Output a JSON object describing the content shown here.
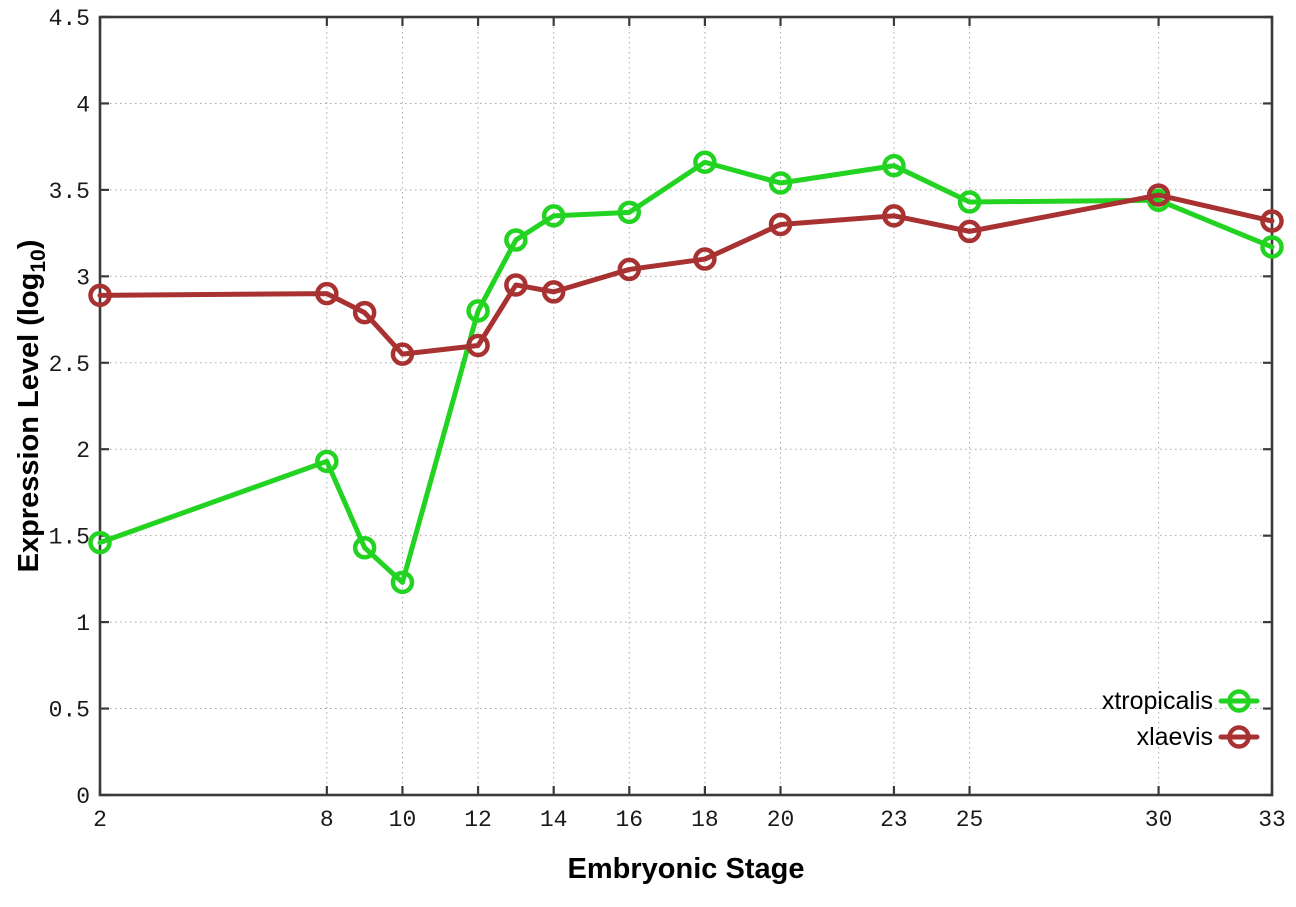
{
  "chart_data": {
    "type": "line",
    "title": "",
    "xlabel": "Embryonic Stage",
    "ylabel": {
      "prefix": "Expression Level (log",
      "subscript": "10",
      "suffix": ")"
    },
    "xlim": [
      2,
      33
    ],
    "ylim": [
      0,
      4.5
    ],
    "grid": true,
    "legend_position": "inside-bottom-right",
    "x": [
      2,
      8,
      9,
      10,
      12,
      13,
      14,
      16,
      18,
      20,
      23,
      25,
      30,
      33
    ],
    "xtick_values": [
      2,
      8,
      10,
      12,
      14,
      16,
      18,
      20,
      23,
      25,
      30,
      33
    ],
    "xtick_labels": [
      "2",
      "8",
      "10",
      "12",
      "14",
      "16",
      "18",
      "20",
      "23",
      "25",
      "30",
      "33"
    ],
    "ytick_values": [
      0,
      0.5,
      1,
      1.5,
      2,
      2.5,
      3,
      3.5,
      4,
      4.5
    ],
    "ytick_labels": [
      "0",
      "0.5",
      "1",
      "1.5",
      "2",
      "2.5",
      "3",
      "3.5",
      "4",
      "4.5"
    ],
    "series": [
      {
        "name": "xtropicalis",
        "color": "#22d322",
        "marker": "open-circle",
        "values": [
          1.46,
          1.93,
          1.43,
          1.23,
          2.8,
          3.21,
          3.35,
          3.37,
          3.66,
          3.54,
          3.64,
          3.43,
          3.44,
          3.17
        ]
      },
      {
        "name": "xlaevis",
        "color": "#a83232",
        "marker": "open-circle",
        "values": [
          2.89,
          2.9,
          2.79,
          2.55,
          2.6,
          2.95,
          2.91,
          3.04,
          3.1,
          3.3,
          3.35,
          3.26,
          3.47,
          3.32
        ]
      }
    ],
    "style": {
      "grid_color": "#a8a8a8",
      "border_color": "#3a3a3a",
      "tick_label_color": "#1a1a1a",
      "axis_title_color": "#000000"
    }
  }
}
